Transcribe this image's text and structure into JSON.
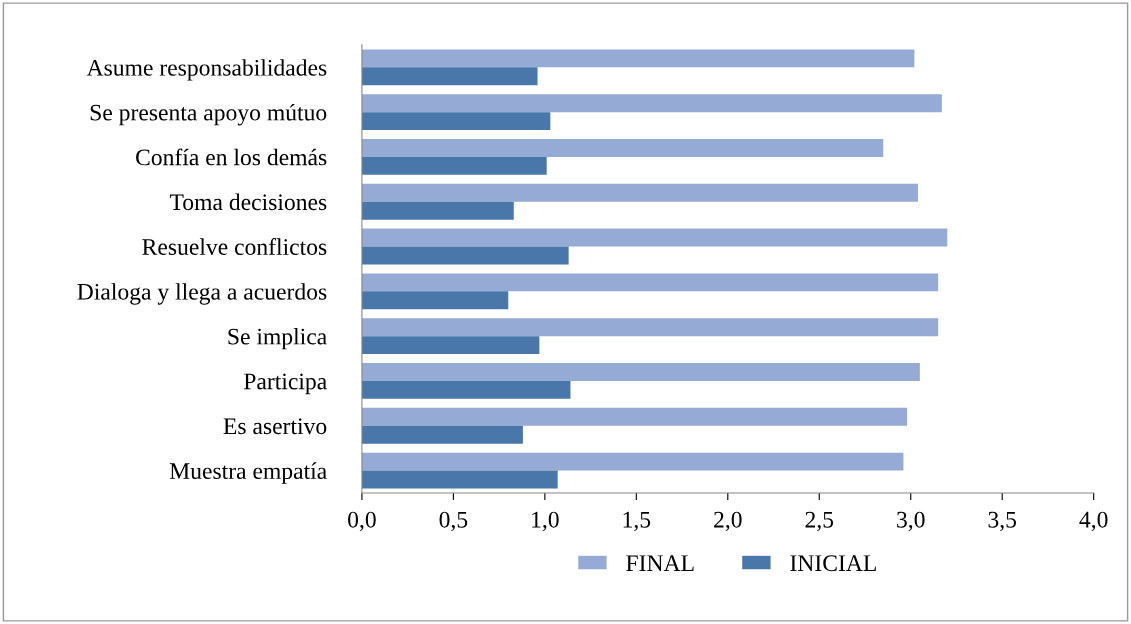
{
  "chart_data": {
    "type": "bar",
    "orientation": "horizontal",
    "categories": [
      "Asume responsabilidades",
      "Se presenta apoyo mútuo",
      "Confía en los demás",
      "Toma decisiones",
      "Resuelve conflictos",
      "Dialoga y llega a acuerdos",
      "Se implica",
      "Participa",
      "Es asertivo",
      "Muestra empatía"
    ],
    "series": [
      {
        "name": "FINAL",
        "color": "#95aad5",
        "values": [
          3.02,
          3.17,
          2.85,
          3.04,
          3.2,
          3.15,
          3.15,
          3.05,
          2.98,
          2.96
        ]
      },
      {
        "name": "INICIAL",
        "color": "#4a77aa",
        "values": [
          0.96,
          1.03,
          1.01,
          0.83,
          1.13,
          0.8,
          0.97,
          1.14,
          0.88,
          1.07
        ]
      }
    ],
    "xlim": [
      0,
      4
    ],
    "xticks": [
      {
        "value": 0,
        "label": "0,0"
      },
      {
        "value": 0.5,
        "label": "0,5"
      },
      {
        "value": 1,
        "label": "1,0"
      },
      {
        "value": 1.5,
        "label": "1,5"
      },
      {
        "value": 2,
        "label": "2,0"
      },
      {
        "value": 2.5,
        "label": "2,5"
      },
      {
        "value": 3,
        "label": "3,0"
      },
      {
        "value": 3.5,
        "label": "3,5"
      },
      {
        "value": 4,
        "label": "4,0"
      }
    ],
    "grid": false,
    "legend": "bottom"
  }
}
